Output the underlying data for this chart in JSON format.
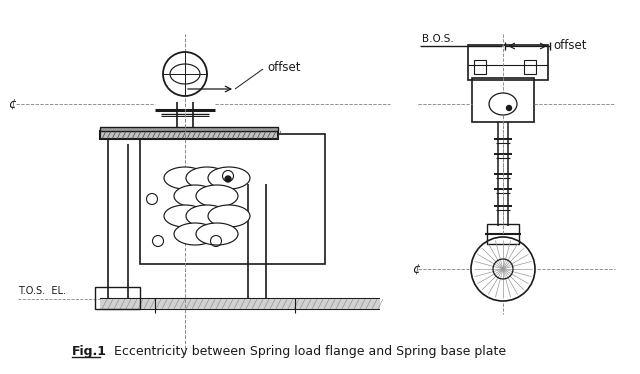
{
  "bg_color": "#ffffff",
  "line_color": "#1a1a1a",
  "light_line_color": "#999999",
  "dashed_color": "#888888",
  "title_fig": "Fig.1",
  "title_text": "   Eccentricity between Spring load flange and Spring base plate",
  "label_offset_left": "offset",
  "label_offset_right": "offset",
  "label_bos": "B.O.S.",
  "label_tos": "T.O.S.  EL.",
  "label_cl": "¢",
  "figsize": [
    6.4,
    3.74
  ],
  "dpi": 100
}
